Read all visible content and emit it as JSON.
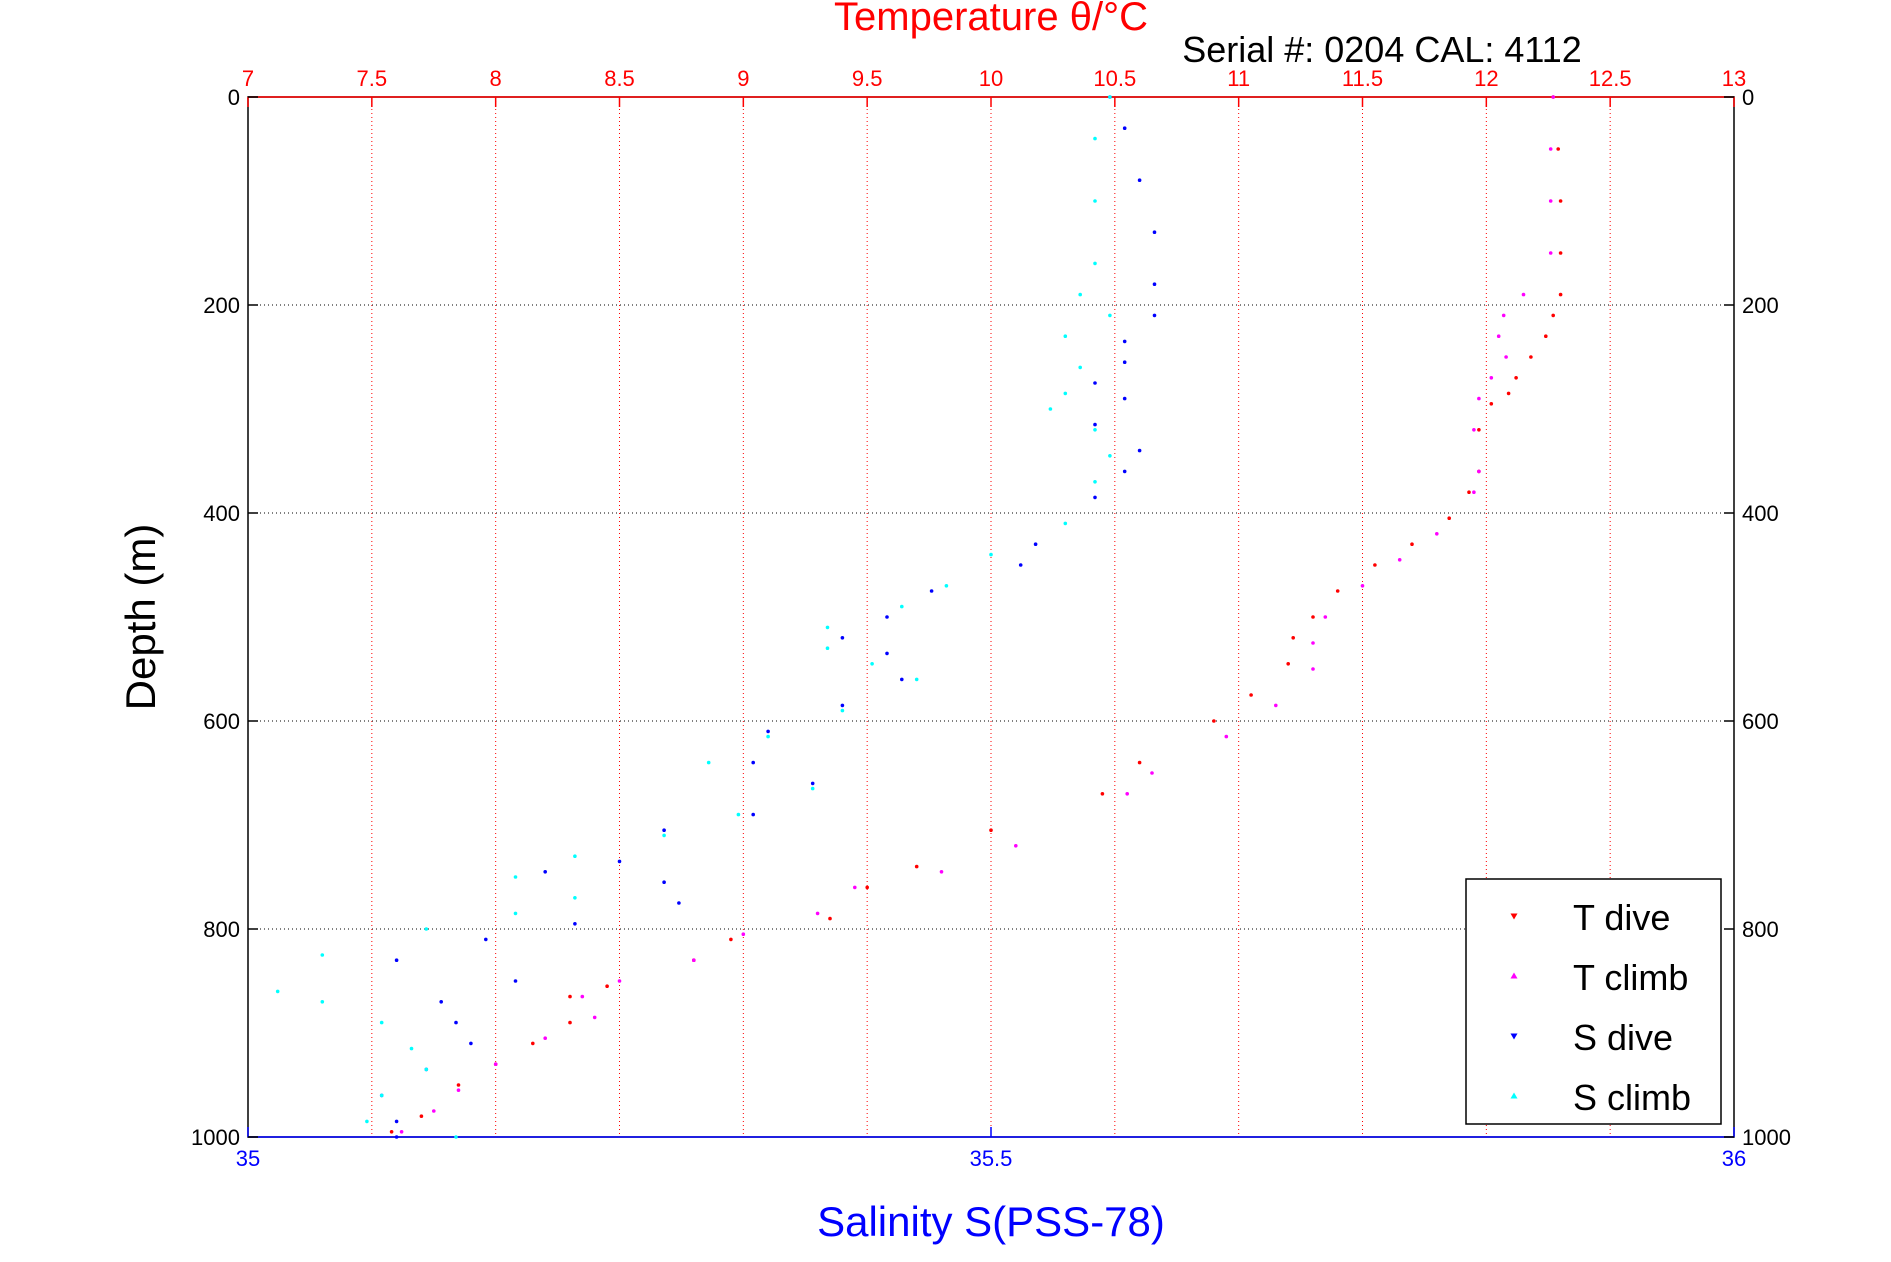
{
  "chart_data": {
    "type": "scatter",
    "title": "Temperature θ/°C",
    "annotation": "Serial #: 0204  CAL: 4112",
    "ylabel": "Depth (m)",
    "xlabel": "Salinity S(PSS-78)",
    "ylim": [
      0,
      1000
    ],
    "y_reversed": true,
    "y_ticks": [
      "0",
      "200",
      "400",
      "600",
      "800",
      "1000"
    ],
    "x_top": {
      "range": [
        7,
        13
      ],
      "ticks": [
        "7",
        "7.5",
        "8",
        "8.5",
        "9",
        "9.5",
        "10",
        "10.5",
        "11",
        "11.5",
        "12",
        "12.5",
        "13"
      ]
    },
    "x_bottom": {
      "range": [
        35,
        36
      ],
      "ticks": [
        "35",
        "35.5",
        "36"
      ]
    },
    "grid": true,
    "legend_position": "bottom-right",
    "series": [
      {
        "name": "T dive",
        "axis": "top",
        "color": "#ff0000",
        "marker": "triangle-down",
        "points": [
          [
            12.27,
            0
          ],
          [
            12.29,
            50
          ],
          [
            12.3,
            100
          ],
          [
            12.3,
            150
          ],
          [
            12.3,
            190
          ],
          [
            12.27,
            210
          ],
          [
            12.24,
            230
          ],
          [
            12.18,
            250
          ],
          [
            12.12,
            270
          ],
          [
            12.09,
            285
          ],
          [
            12.02,
            295
          ],
          [
            11.97,
            320
          ],
          [
            11.97,
            360
          ],
          [
            11.93,
            380
          ],
          [
            11.85,
            405
          ],
          [
            11.7,
            430
          ],
          [
            11.55,
            450
          ],
          [
            11.4,
            475
          ],
          [
            11.3,
            500
          ],
          [
            11.22,
            520
          ],
          [
            11.2,
            545
          ],
          [
            11.05,
            575
          ],
          [
            10.9,
            600
          ],
          [
            10.6,
            640
          ],
          [
            10.45,
            670
          ],
          [
            10.0,
            705
          ],
          [
            9.7,
            740
          ],
          [
            9.5,
            760
          ],
          [
            9.35,
            790
          ],
          [
            8.95,
            810
          ],
          [
            8.8,
            830
          ],
          [
            8.45,
            855
          ],
          [
            8.3,
            865
          ],
          [
            8.3,
            890
          ],
          [
            8.15,
            910
          ],
          [
            8.0,
            930
          ],
          [
            7.85,
            950
          ],
          [
            7.7,
            980
          ],
          [
            7.58,
            995
          ]
        ]
      },
      {
        "name": "T climb",
        "axis": "top",
        "color": "#ff00ff",
        "marker": "triangle-up",
        "points": [
          [
            12.27,
            0
          ],
          [
            12.26,
            50
          ],
          [
            12.26,
            100
          ],
          [
            12.26,
            150
          ],
          [
            12.15,
            190
          ],
          [
            12.07,
            210
          ],
          [
            12.05,
            230
          ],
          [
            12.08,
            250
          ],
          [
            12.02,
            270
          ],
          [
            11.97,
            290
          ],
          [
            11.95,
            320
          ],
          [
            11.97,
            360
          ],
          [
            11.95,
            380
          ],
          [
            11.8,
            420
          ],
          [
            11.65,
            445
          ],
          [
            11.5,
            470
          ],
          [
            11.35,
            500
          ],
          [
            11.3,
            525
          ],
          [
            11.3,
            550
          ],
          [
            11.15,
            585
          ],
          [
            10.95,
            615
          ],
          [
            10.65,
            650
          ],
          [
            10.55,
            670
          ],
          [
            10.1,
            720
          ],
          [
            9.8,
            745
          ],
          [
            9.45,
            760
          ],
          [
            9.3,
            785
          ],
          [
            9.0,
            805
          ],
          [
            8.8,
            830
          ],
          [
            8.5,
            850
          ],
          [
            8.35,
            865
          ],
          [
            8.4,
            885
          ],
          [
            8.2,
            905
          ],
          [
            8.0,
            930
          ],
          [
            7.85,
            955
          ],
          [
            7.75,
            975
          ],
          [
            7.62,
            995
          ]
        ]
      },
      {
        "name": "S dive",
        "axis": "bottom",
        "color": "#0000ff",
        "marker": "triangle-down",
        "points": [
          [
            35.58,
            0
          ],
          [
            35.59,
            30
          ],
          [
            35.6,
            80
          ],
          [
            35.61,
            130
          ],
          [
            35.61,
            180
          ],
          [
            35.61,
            210
          ],
          [
            35.59,
            235
          ],
          [
            35.59,
            255
          ],
          [
            35.57,
            275
          ],
          [
            35.59,
            290
          ],
          [
            35.57,
            315
          ],
          [
            35.6,
            340
          ],
          [
            35.59,
            360
          ],
          [
            35.57,
            385
          ],
          [
            35.53,
            430
          ],
          [
            35.52,
            450
          ],
          [
            35.46,
            475
          ],
          [
            35.43,
            500
          ],
          [
            35.4,
            520
          ],
          [
            35.43,
            535
          ],
          [
            35.44,
            560
          ],
          [
            35.4,
            585
          ],
          [
            35.35,
            610
          ],
          [
            35.34,
            640
          ],
          [
            35.38,
            660
          ],
          [
            35.34,
            690
          ],
          [
            35.28,
            705
          ],
          [
            35.25,
            735
          ],
          [
            35.2,
            745
          ],
          [
            35.28,
            755
          ],
          [
            35.29,
            775
          ],
          [
            35.22,
            795
          ],
          [
            35.16,
            810
          ],
          [
            35.1,
            830
          ],
          [
            35.18,
            850
          ],
          [
            35.13,
            870
          ],
          [
            35.14,
            890
          ],
          [
            35.15,
            910
          ],
          [
            35.12,
            935
          ],
          [
            35.09,
            960
          ],
          [
            35.1,
            985
          ],
          [
            35.1,
            1000
          ]
        ]
      },
      {
        "name": "S climb",
        "axis": "bottom",
        "color": "#00ffff",
        "marker": "triangle-up",
        "points": [
          [
            35.58,
            0
          ],
          [
            35.57,
            40
          ],
          [
            35.57,
            100
          ],
          [
            35.57,
            160
          ],
          [
            35.56,
            190
          ],
          [
            35.58,
            210
          ],
          [
            35.55,
            230
          ],
          [
            35.56,
            260
          ],
          [
            35.55,
            285
          ],
          [
            35.54,
            300
          ],
          [
            35.57,
            320
          ],
          [
            35.58,
            345
          ],
          [
            35.57,
            370
          ],
          [
            35.55,
            410
          ],
          [
            35.5,
            440
          ],
          [
            35.47,
            470
          ],
          [
            35.44,
            490
          ],
          [
            35.39,
            510
          ],
          [
            35.39,
            530
          ],
          [
            35.42,
            545
          ],
          [
            35.45,
            560
          ],
          [
            35.4,
            590
          ],
          [
            35.35,
            615
          ],
          [
            35.31,
            640
          ],
          [
            35.38,
            665
          ],
          [
            35.33,
            690
          ],
          [
            35.28,
            710
          ],
          [
            35.22,
            730
          ],
          [
            35.18,
            750
          ],
          [
            35.22,
            770
          ],
          [
            35.18,
            785
          ],
          [
            35.12,
            800
          ],
          [
            35.05,
            825
          ],
          [
            35.02,
            860
          ],
          [
            35.05,
            870
          ],
          [
            35.09,
            890
          ],
          [
            35.11,
            915
          ],
          [
            35.12,
            935
          ],
          [
            35.09,
            960
          ],
          [
            35.08,
            985
          ],
          [
            35.14,
            1000
          ]
        ]
      }
    ]
  }
}
